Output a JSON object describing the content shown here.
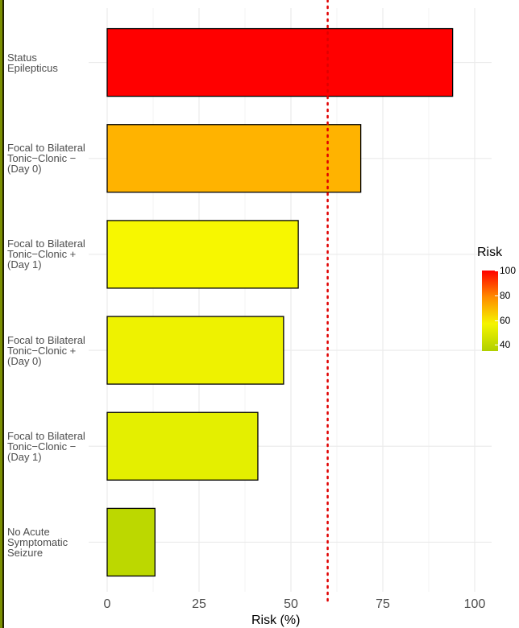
{
  "chart_data": {
    "type": "bar",
    "orientation": "horizontal",
    "title": "",
    "xlabel": "Risk (%)",
    "ylabel": "",
    "xlim": [
      0,
      100
    ],
    "x_ticks": [
      "0",
      "25",
      "50",
      "75",
      "100"
    ],
    "reference_line": {
      "x": 60,
      "style": "dotted",
      "color": "#e00000"
    },
    "categories": [
      [
        "Status",
        "Epilepticus"
      ],
      [
        "Focal to Bilateral",
        "Tonic−Clonic −",
        "(Day 0)"
      ],
      [
        "Focal to Bilateral",
        "Tonic−Clonic +",
        "(Day 1)"
      ],
      [
        "Focal to Bilateral",
        "Tonic−Clonic +",
        "(Day 0)"
      ],
      [
        "Focal to Bilateral",
        "Tonic−Clonic −",
        "(Day 1)"
      ],
      [
        "No Acute",
        "Symptomatic",
        "Seizure"
      ]
    ],
    "values": [
      94,
      69,
      52,
      48,
      41,
      13
    ],
    "bar_colors": [
      "#ff0000",
      "#ffb300",
      "#f7f700",
      "#eef200",
      "#e4ef00",
      "#bcd800"
    ],
    "legend": {
      "title": "Risk",
      "ticks": [
        "100",
        "80",
        "60",
        "40"
      ],
      "placement": "right"
    },
    "grid": true
  }
}
